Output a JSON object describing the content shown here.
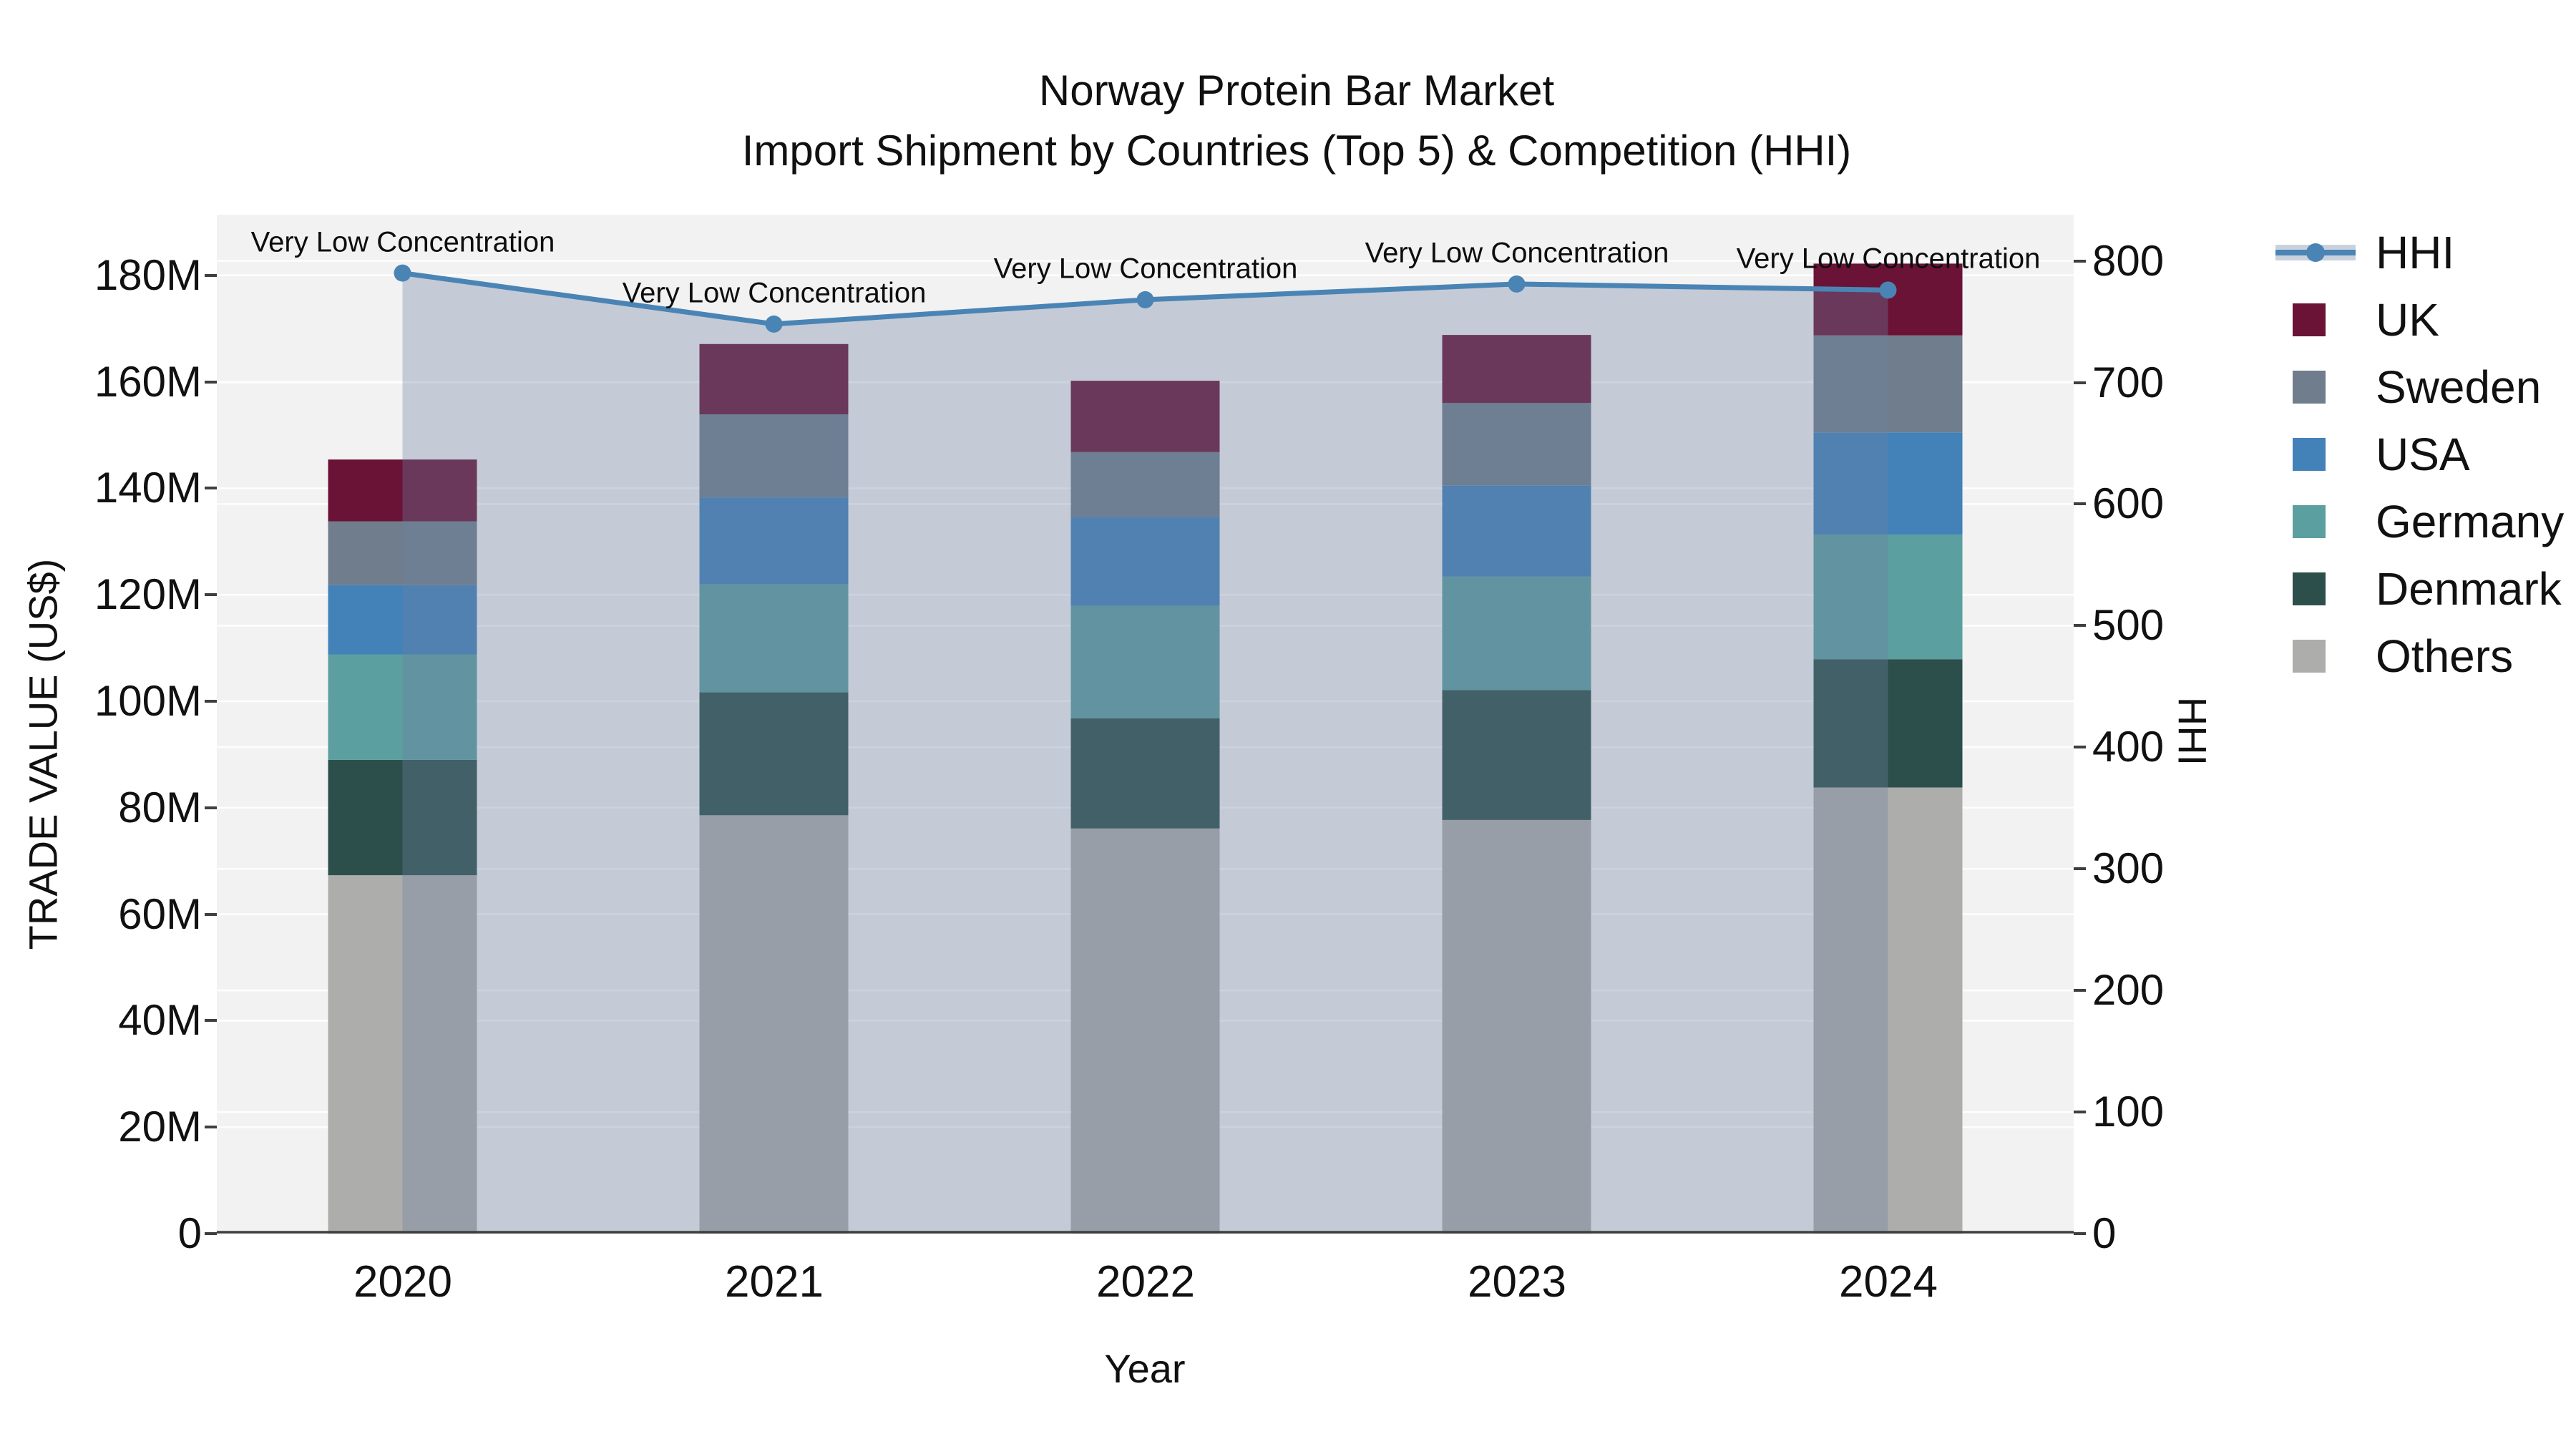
{
  "title": {
    "line1": "Norway Protein Bar Market",
    "line2": "Import Shipment by Countries (Top 5) & Competition (HHI)"
  },
  "chart_data": {
    "type": "bar+line",
    "title": "Norway Protein Bar Market — Import Shipment by Countries (Top 5) & Competition (HHI)",
    "categories": [
      "2020",
      "2021",
      "2022",
      "2023",
      "2024"
    ],
    "bar_unit": "US$ millions",
    "bar_stack_order_bottom_to_top": [
      "Others",
      "Denmark",
      "Germany",
      "USA",
      "Sweden",
      "UK"
    ],
    "series": [
      {
        "name": "Others",
        "color": "#adadac",
        "values": [
          67.3,
          78.6,
          76.1,
          77.7,
          83.8
        ]
      },
      {
        "name": "Denmark",
        "color": "#2d4f4b",
        "values": [
          21.7,
          23.1,
          20.7,
          24.4,
          24.1
        ]
      },
      {
        "name": "Germany",
        "color": "#5b9fa0",
        "values": [
          19.8,
          20.3,
          21.1,
          21.3,
          23.4
        ]
      },
      {
        "name": "USA",
        "color": "#4381b9",
        "values": [
          13.0,
          16.3,
          16.7,
          17.1,
          19.2
        ]
      },
      {
        "name": "Sweden",
        "color": "#6f7d8c",
        "values": [
          12.0,
          15.6,
          12.2,
          15.5,
          18.2
        ]
      },
      {
        "name": "UK",
        "color": "#6a1336",
        "values": [
          11.6,
          13.2,
          13.4,
          12.8,
          13.5
        ]
      }
    ],
    "line_series": {
      "name": "HHI",
      "color": "#4a84b5",
      "area_fill_color": "rgba(108,130,160,0.34)",
      "values": [
        790,
        748,
        768,
        781,
        776
      ]
    },
    "annotations": [
      "Very Low Concentration",
      "Very Low Concentration",
      "Very Low Concentration",
      "Very Low Concentration",
      "Very Low Concentration"
    ],
    "xlabel": "Year",
    "ylabel_left": "TRADE VALUE (US$)",
    "ylabel_right": "HHI",
    "ytick_values_left": [
      0,
      20,
      40,
      60,
      80,
      100,
      120,
      140,
      160,
      180
    ],
    "ytick_labels_left": [
      "0",
      "20M",
      "40M",
      "60M",
      "80M",
      "100M",
      "120M",
      "140M",
      "160M",
      "180M"
    ],
    "ytick_values_right": [
      0,
      100,
      200,
      300,
      400,
      500,
      600,
      700,
      800
    ],
    "ytick_labels_right": [
      "0",
      "100",
      "200",
      "300",
      "400",
      "500",
      "600",
      "700",
      "800"
    ],
    "ylim_left": [
      0,
      191.4
    ],
    "ylim_right": [
      0,
      838
    ],
    "grid": true,
    "legend_position": "right"
  },
  "legend": {
    "items": [
      {
        "id": "hhi",
        "label": "HHI",
        "type": "line",
        "color": "#4a84b5"
      },
      {
        "id": "uk",
        "label": "UK",
        "type": "swatch",
        "color": "#6a1336"
      },
      {
        "id": "sweden",
        "label": "Sweden",
        "type": "swatch",
        "color": "#6f7d8c"
      },
      {
        "id": "usa",
        "label": "USA",
        "type": "swatch",
        "color": "#4381b9"
      },
      {
        "id": "germany",
        "label": "Germany",
        "type": "swatch",
        "color": "#5b9fa0"
      },
      {
        "id": "denmark",
        "label": "Denmark",
        "type": "swatch",
        "color": "#2d4f4b"
      },
      {
        "id": "others",
        "label": "Others",
        "type": "swatch",
        "color": "#adadac"
      }
    ]
  }
}
